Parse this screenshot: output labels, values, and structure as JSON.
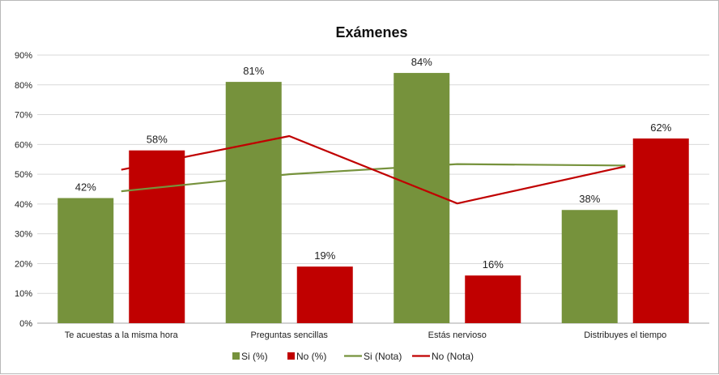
{
  "chart_data": {
    "type": "bar",
    "title": "Exámenes",
    "categories": [
      "Te acuestas a la misma hora",
      "Preguntas sencillas",
      "Estás nervioso",
      "Distribuyes el tiempo"
    ],
    "ylim": [
      0,
      90
    ],
    "yticks": [
      0,
      10,
      20,
      30,
      40,
      50,
      60,
      70,
      80,
      90
    ],
    "ytick_suffix": "%",
    "grid": true,
    "legend_position": "bottom",
    "bar_series": [
      {
        "name": "Si (%)",
        "values": [
          42,
          81,
          84,
          38
        ],
        "labels": [
          "42%",
          "81%",
          "84%",
          "38%"
        ],
        "color": "#76923c"
      },
      {
        "name": "No (%)",
        "values": [
          58,
          19,
          16,
          62
        ],
        "labels": [
          "58%",
          "19%",
          "16%",
          "62%"
        ],
        "color": "#c00000"
      }
    ],
    "line_series": [
      {
        "name": "Si (Nota)",
        "values": [
          44.3,
          50,
          53.4,
          52.9
        ],
        "color": "#76923c"
      },
      {
        "name": "No (Nota)",
        "values": [
          51.5,
          62.8,
          40.2,
          52.6
        ],
        "color": "#c00000"
      }
    ]
  }
}
